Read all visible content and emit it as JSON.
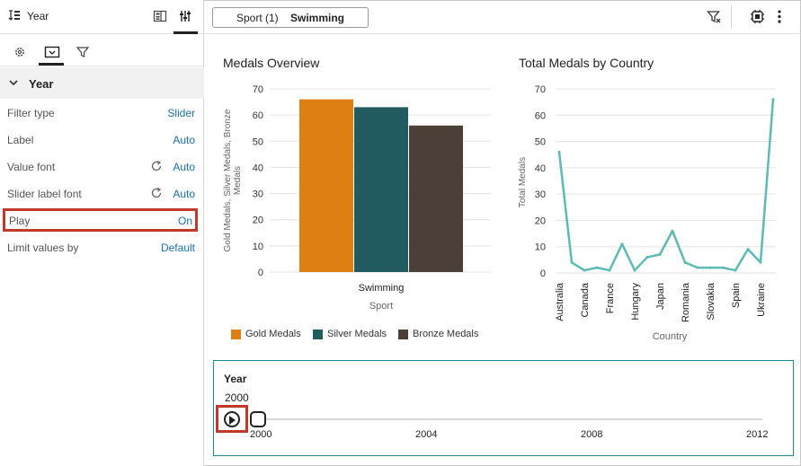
{
  "left_panel": {
    "header_title": "Year",
    "section_title": "Year",
    "properties": [
      {
        "label": "Filter type",
        "value": "Slider"
      },
      {
        "label": "Label",
        "value": "Auto"
      },
      {
        "label": "Value font",
        "value": "Auto"
      },
      {
        "label": "Slider label font",
        "value": "Auto"
      },
      {
        "label": "Play",
        "value": "On"
      },
      {
        "label": "Limit values by",
        "value": "Default"
      }
    ]
  },
  "topbar": {
    "filter_label": "Sport (1)",
    "filter_value": "Swimming"
  },
  "colors": {
    "gold": "#DE7F14",
    "silver": "#225B60",
    "bronze": "#4C3F38",
    "line": "#5EBAB3",
    "highlight": "#C0392B"
  },
  "chart_data": [
    {
      "type": "bar",
      "title": "Medals Overview",
      "xlabel": "Sport",
      "ylabel": "Gold Medals, Silver Medals, Bronze Medals",
      "categories": [
        "Swimming"
      ],
      "series": [
        {
          "name": "Gold Medals",
          "values": [
            66
          ]
        },
        {
          "name": "Silver Medals",
          "values": [
            63
          ]
        },
        {
          "name": "Bronze Medals",
          "values": [
            56
          ]
        }
      ],
      "ylim": [
        0,
        70
      ],
      "yticks": [
        "0",
        "10",
        "20",
        "30",
        "40",
        "50",
        "60",
        "70"
      ],
      "legend": "bottom",
      "grid": true
    },
    {
      "type": "line",
      "title": "Total Medals by Country",
      "xlabel": "Country",
      "ylabel": "Total Medals",
      "categories": [
        "Australia",
        "",
        "Canada",
        "",
        "France",
        "",
        "Hungary",
        "",
        "Japan",
        "",
        "Romania",
        "",
        "Slovakia",
        "",
        "Spain",
        "",
        "Ukraine",
        ""
      ],
      "values": [
        46,
        4,
        1,
        2,
        1,
        11,
        1,
        6,
        7,
        16,
        4,
        2,
        2,
        2,
        1,
        9,
        4,
        66
      ],
      "ylim": [
        0,
        70
      ],
      "yticks": [
        "0",
        "10",
        "20",
        "30",
        "40",
        "50",
        "60",
        "70"
      ],
      "grid": true
    }
  ],
  "slider": {
    "title": "Year",
    "current_value": "2000",
    "tick_labels": [
      "2000",
      "2004",
      "2008",
      "2012"
    ]
  }
}
